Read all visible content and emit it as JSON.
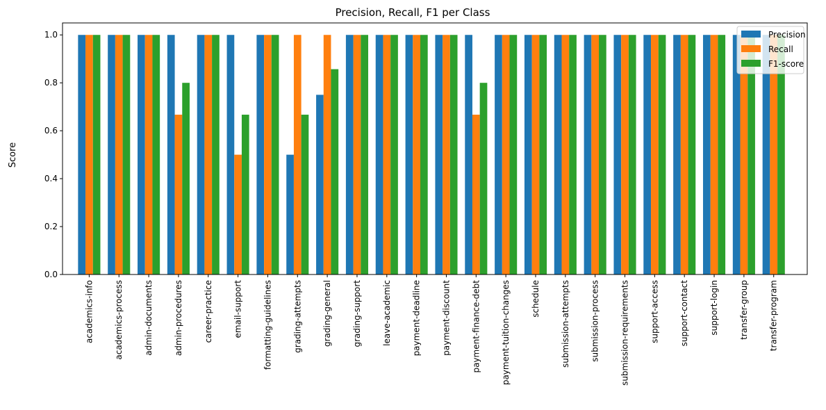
{
  "chart_data": {
    "type": "bar",
    "title": "Precision, Recall, F1 per Class",
    "xlabel": "",
    "ylabel": "Score",
    "ylim": [
      0,
      1.05
    ],
    "yticks": [
      "0.0",
      "0.2",
      "0.4",
      "0.6",
      "0.8",
      "1.0"
    ],
    "ytick_values": [
      0,
      0.2,
      0.4,
      0.6,
      0.8,
      1.0
    ],
    "grid": false,
    "legend_position": "top-right",
    "categories": [
      "academics-info",
      "academics-process",
      "admin-documents",
      "admin-procedures",
      "career-practice",
      "email-support",
      "formatting-guidelines",
      "grading-attempts",
      "grading-general",
      "grading-support",
      "leave-academic",
      "payment-deadline",
      "payment-discount",
      "payment-finance-debt",
      "payment-tuition-changes",
      "schedule",
      "submission-attempts",
      "submission-process",
      "submission-requirements",
      "support-access",
      "support-contact",
      "support-login",
      "transfer-group",
      "transfer-program"
    ],
    "series": [
      {
        "name": "Precision",
        "color": "#1f77b4",
        "values": [
          1,
          1,
          1,
          1,
          1,
          1,
          1,
          0.5,
          0.75,
          1,
          1,
          1,
          1,
          1,
          1,
          1,
          1,
          1,
          1,
          1,
          1,
          1,
          1,
          1
        ]
      },
      {
        "name": "Recall",
        "color": "#ff7f0e",
        "values": [
          1,
          1,
          1,
          0.667,
          1,
          0.5,
          1,
          1,
          1,
          1,
          1,
          1,
          1,
          0.667,
          1,
          1,
          1,
          1,
          1,
          1,
          1,
          1,
          1,
          1
        ]
      },
      {
        "name": "F1-score",
        "color": "#2ca02c",
        "values": [
          1,
          1,
          1,
          0.8,
          1,
          0.667,
          1,
          0.667,
          0.857,
          1,
          1,
          1,
          1,
          0.8,
          1,
          1,
          1,
          1,
          1,
          1,
          1,
          1,
          1,
          1
        ]
      }
    ]
  }
}
